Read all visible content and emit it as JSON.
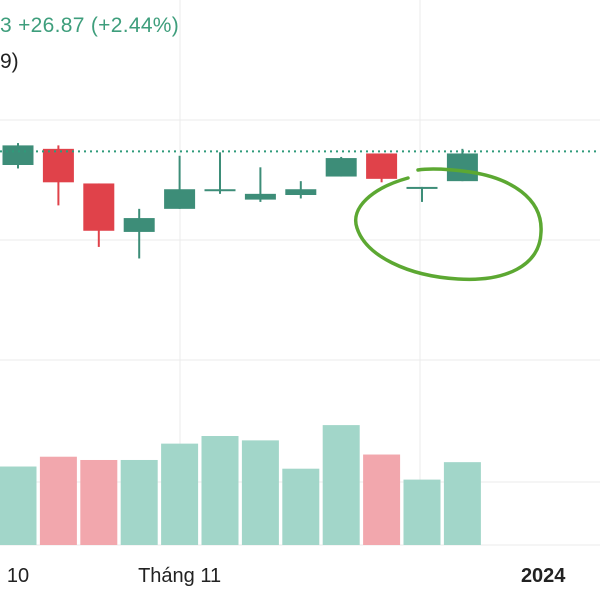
{
  "header": {
    "change_line": "3  +26.87 (+2.44%)",
    "sub_line": "9)"
  },
  "colors": {
    "up": "#3d8d78",
    "down": "#e0424a",
    "vol_up": "#a2d6c9",
    "vol_down": "#f2a7ad",
    "grid": "#ebebeb",
    "price_line": "#2f9a7a",
    "annotation": "#5ca832"
  },
  "chart_data": {
    "type": "candlestick",
    "price_axis": {
      "min": 1036,
      "max": 1140
    },
    "last_price": 1126.4,
    "x_ticks": [
      {
        "index": 0,
        "label": "10",
        "bold": false
      },
      {
        "index": 4,
        "label": "Tháng 11",
        "bold": false
      },
      {
        "index": 13,
        "label": "2024",
        "bold": true
      }
    ],
    "candles": [
      {
        "o": 1120.5,
        "h": 1130.0,
        "l": 1119.0,
        "c": 1129.0,
        "v": 0.72
      },
      {
        "o": 1127.5,
        "h": 1129.0,
        "l": 1103.0,
        "c": 1113.0,
        "v": 0.81
      },
      {
        "o": 1112.5,
        "h": 1112.5,
        "l": 1085.0,
        "c": 1092.0,
        "v": 0.78
      },
      {
        "o": 1091.5,
        "h": 1101.5,
        "l": 1080.0,
        "c": 1097.5,
        "v": 0.78
      },
      {
        "o": 1101.5,
        "h": 1124.5,
        "l": 1101.5,
        "c": 1110.0,
        "v": 0.93
      },
      {
        "o": 1110.0,
        "h": 1126.0,
        "l": 1108.0,
        "c": 1110.0,
        "v": 1.0
      },
      {
        "o": 1105.5,
        "h": 1119.5,
        "l": 1104.5,
        "c": 1108.0,
        "v": 0.96
      },
      {
        "o": 1107.5,
        "h": 1113.5,
        "l": 1106.0,
        "c": 1110.0,
        "v": 0.7
      },
      {
        "o": 1115.5,
        "h": 1124.0,
        "l": 1115.5,
        "c": 1123.5,
        "v": 1.1
      },
      {
        "o": 1125.5,
        "h": 1125.5,
        "l": 1113.0,
        "c": 1114.5,
        "v": 0.83
      },
      {
        "o": 1111.0,
        "h": 1111.0,
        "l": 1104.5,
        "c": 1111.0,
        "v": 0.6
      },
      {
        "o": 1113.5,
        "h": 1127.5,
        "l": 1113.5,
        "c": 1125.5,
        "v": 0.76
      }
    ]
  }
}
